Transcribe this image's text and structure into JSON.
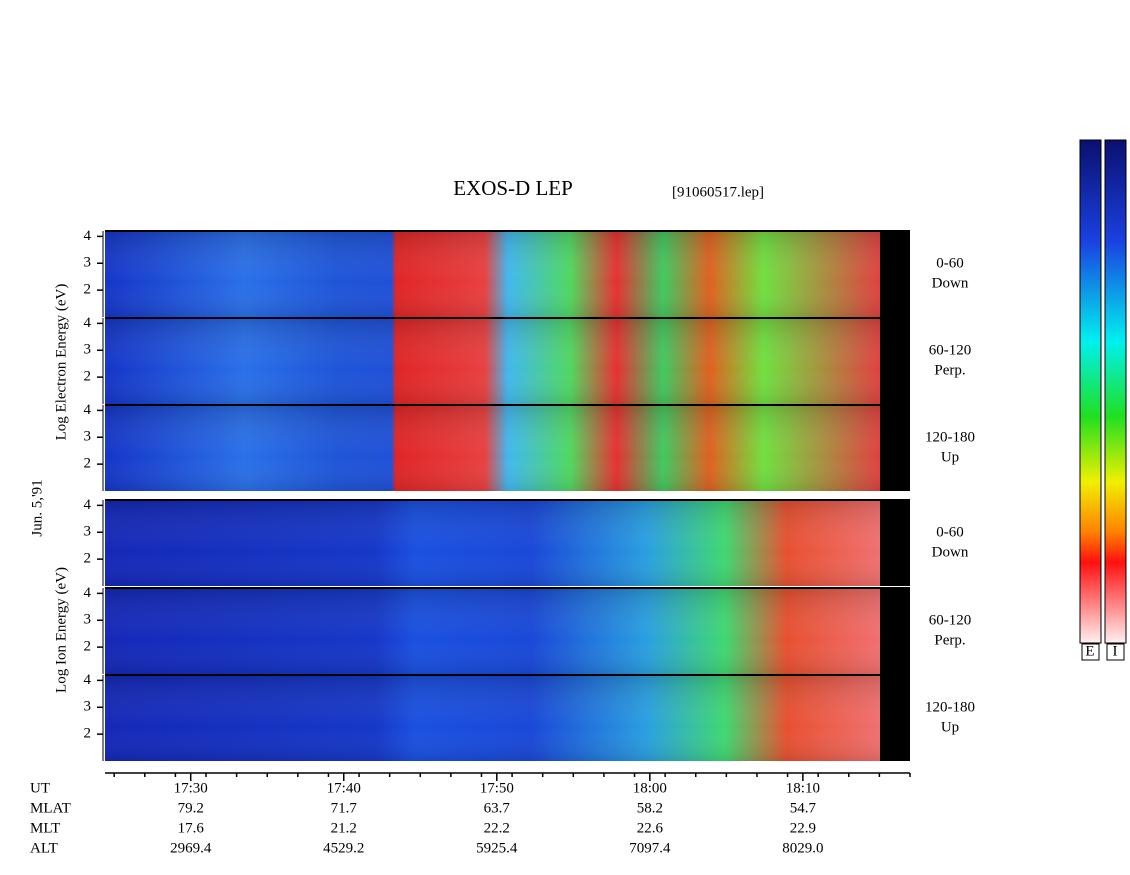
{
  "header": {
    "title": "EXOS-D LEP",
    "file": "[91060517.lep]"
  },
  "chart_data": {
    "type": "spectrogram",
    "date": "Jun. 5,'91",
    "electron_label": "Log Electron Energy (eV)",
    "ion_label": "Log Ion Energy (eV)",
    "xlim": [
      1044.4,
      1097
    ],
    "xticks": [
      {
        "value": 1050,
        "label": "17:30"
      },
      {
        "value": 1060,
        "label": "17:40"
      },
      {
        "value": 1070,
        "label": "17:50"
      },
      {
        "value": 1080,
        "label": "18:00"
      },
      {
        "value": 1090,
        "label": "18:10"
      }
    ],
    "ylim": [
      1,
      4.2
    ],
    "yticks": [
      2,
      3,
      4
    ],
    "pitch_angles": [
      {
        "range": "0-60",
        "dir": "Down"
      },
      {
        "range": "60-120",
        "dir": "Perp."
      },
      {
        "range": "120-180",
        "dir": "Up"
      }
    ],
    "orbit": {
      "ut_label": "UT",
      "rows": [
        {
          "name": "MLAT",
          "values": [
            "79.2",
            "71.7",
            "63.7",
            "58.2",
            "54.7"
          ]
        },
        {
          "name": "MLT",
          "values": [
            "17.6",
            "21.2",
            "22.2",
            "22.6",
            "22.9"
          ]
        },
        {
          "name": "ALT",
          "values": [
            "2969.4",
            "4529.2",
            "5925.4",
            "7097.4",
            "8029.0"
          ]
        }
      ]
    },
    "colorbar_labels": [
      "E",
      "I"
    ]
  }
}
